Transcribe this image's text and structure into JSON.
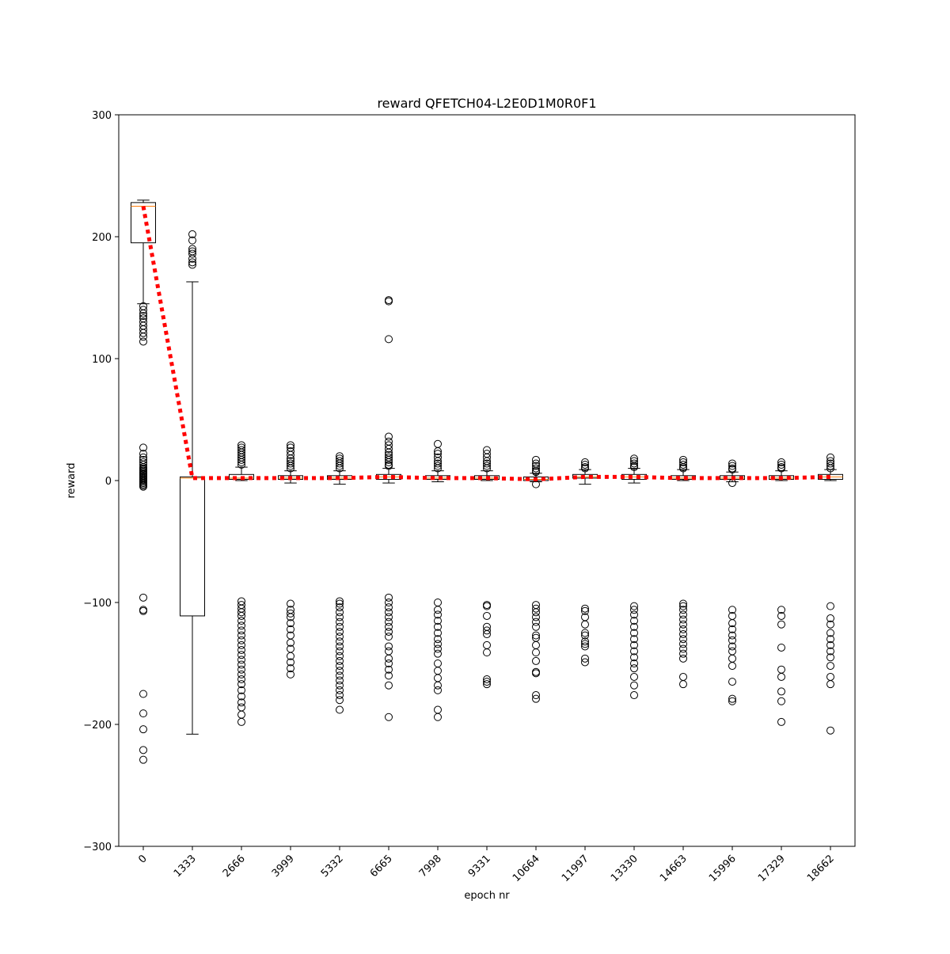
{
  "chart_data": {
    "type": "boxplot",
    "title": "reward QFETCH04-L2E0D1M0R0F1",
    "xlabel": "epoch nr",
    "ylabel": "reward",
    "ylim": [
      -300,
      300
    ],
    "yticks": [
      -300,
      -200,
      -100,
      0,
      100,
      200,
      300
    ],
    "ytick_labels": [
      "−300",
      "−200",
      "−100",
      "0",
      "100",
      "200",
      "300"
    ],
    "categories": [
      "0",
      "1333",
      "2666",
      "3999",
      "5332",
      "6665",
      "7998",
      "9331",
      "10664",
      "11997",
      "13330",
      "14663",
      "15996",
      "17329",
      "18662"
    ],
    "boxes": [
      {
        "q1": 195,
        "median": 225,
        "q3": 228,
        "whisker_low": 145,
        "whisker_high": 230,
        "fliers": [
          143,
          140,
          137,
          135,
          133,
          130,
          127,
          124,
          121,
          118,
          114,
          27,
          22,
          19,
          17,
          15,
          13,
          11,
          10,
          9,
          8,
          7,
          6,
          5,
          4,
          3,
          2,
          1,
          0,
          -1,
          -2,
          -3,
          -4,
          -5,
          -96,
          -106,
          -107,
          -175,
          -191,
          -204,
          -221,
          -229
        ]
      },
      {
        "q1": -111,
        "median": 2,
        "q3": 3,
        "whisker_low": -208,
        "whisker_high": 163,
        "fliers": [
          202,
          197,
          190,
          188,
          186,
          182,
          179,
          177
        ]
      },
      {
        "q1": 1,
        "median": 2,
        "q3": 5,
        "whisker_low": 0,
        "whisker_high": 11,
        "fliers": [
          29,
          27,
          25,
          23,
          21,
          19,
          17,
          15,
          13,
          -99,
          -102,
          -105,
          -108,
          -111,
          -115,
          -119,
          -123,
          -127,
          -131,
          -135,
          -139,
          -143,
          -147,
          -151,
          -155,
          -159,
          -163,
          -167,
          -172,
          -177,
          -182,
          -186,
          -192,
          -198
        ]
      },
      {
        "q1": 1,
        "median": 2,
        "q3": 4,
        "whisker_low": -2,
        "whisker_high": 8,
        "fliers": [
          29,
          27,
          24,
          21,
          18,
          16,
          14,
          12,
          10,
          -101,
          -106,
          -109,
          -112,
          -117,
          -122,
          -127,
          -133,
          -138,
          -144,
          -149,
          -154,
          -159
        ]
      },
      {
        "q1": 1,
        "median": 2,
        "q3": 4,
        "whisker_low": -3,
        "whisker_high": 8,
        "fliers": [
          20,
          18,
          16,
          14,
          12,
          10,
          -99,
          -101,
          -104,
          -108,
          -112,
          -116,
          -120,
          -124,
          -128,
          -132,
          -136,
          -140,
          -144,
          -148,
          -152,
          -156,
          -160,
          -164,
          -168,
          -172,
          -176,
          -180,
          -188
        ]
      },
      {
        "q1": 1,
        "median": 3,
        "q3": 5,
        "whisker_low": -2,
        "whisker_high": 10,
        "fliers": [
          148,
          147,
          116,
          36,
          32,
          29,
          26,
          23,
          21,
          19,
          17,
          15,
          13,
          12,
          -96,
          -100,
          -104,
          -108,
          -112,
          -116,
          -120,
          -124,
          -128,
          -136,
          -140,
          -146,
          -150,
          -155,
          -160,
          -168,
          -194
        ]
      },
      {
        "q1": 1,
        "median": 2,
        "q3": 4,
        "whisker_low": -1,
        "whisker_high": 8,
        "fliers": [
          30,
          24,
          22,
          19,
          16,
          14,
          12,
          10,
          -100,
          -106,
          -110,
          -115,
          -120,
          -125,
          -130,
          -134,
          -138,
          -142,
          -150,
          -156,
          -162,
          -168,
          -172,
          -188,
          -194
        ]
      },
      {
        "q1": 1,
        "median": 2,
        "q3": 4,
        "whisker_low": 0,
        "whisker_high": 8,
        "fliers": [
          25,
          22,
          19,
          16,
          14,
          12,
          10,
          -102,
          -103,
          -111,
          -120,
          -123,
          -126,
          -135,
          -141,
          -163,
          -165,
          -167
        ]
      },
      {
        "q1": 0,
        "median": 1,
        "q3": 3,
        "whisker_low": -1,
        "whisker_high": 6,
        "fliers": [
          17,
          14,
          12,
          10,
          8,
          7,
          -3,
          -102,
          -105,
          -108,
          -112,
          -116,
          -120,
          -127,
          -129,
          -135,
          -141,
          -148,
          -157,
          -158,
          -176,
          -179
        ]
      },
      {
        "q1": 2,
        "median": 3,
        "q3": 5,
        "whisker_low": -3,
        "whisker_high": 9,
        "fliers": [
          15,
          13,
          11,
          10,
          -105,
          -107,
          -112,
          -118,
          -125,
          -127,
          -132,
          -134,
          -136,
          -146,
          -149
        ]
      },
      {
        "q1": 1,
        "median": 3,
        "q3": 5,
        "whisker_low": -2,
        "whisker_high": 10,
        "fliers": [
          18,
          16,
          14,
          12,
          11,
          -103,
          -106,
          -110,
          -115,
          -120,
          -125,
          -130,
          -135,
          -140,
          -145,
          -150,
          -154,
          -161,
          -168,
          -176
        ]
      },
      {
        "q1": 1,
        "median": 2,
        "q3": 4,
        "whisker_low": 0,
        "whisker_high": 9,
        "fliers": [
          17,
          15,
          13,
          11,
          10,
          -101,
          -103,
          -106,
          -110,
          -114,
          -118,
          -122,
          -126,
          -130,
          -134,
          -138,
          -142,
          -146,
          -161,
          -167
        ]
      },
      {
        "q1": 1,
        "median": 2,
        "q3": 4,
        "whisker_low": -1,
        "whisker_high": 7,
        "fliers": [
          14,
          12,
          10,
          9,
          -2,
          -106,
          -111,
          -117,
          -122,
          -127,
          -131,
          -136,
          -140,
          -146,
          -152,
          -165,
          -179,
          -181
        ]
      },
      {
        "q1": 1,
        "median": 2,
        "q3": 4,
        "whisker_low": 0,
        "whisker_high": 8,
        "fliers": [
          15,
          13,
          11,
          10,
          -106,
          -111,
          -118,
          -137,
          -155,
          -161,
          -173,
          -181,
          -198
        ]
      },
      {
        "q1": 1,
        "median": 3,
        "q3": 5,
        "whisker_low": 0,
        "whisker_high": 9,
        "fliers": [
          19,
          16,
          14,
          12,
          10,
          -103,
          -113,
          -118,
          -125,
          -130,
          -135,
          -140,
          -145,
          -152,
          -161,
          -167,
          -205
        ]
      }
    ],
    "mean_line": {
      "color": "#ff0000",
      "style": "dotted",
      "values": [
        225,
        2,
        2,
        2,
        2,
        3,
        2,
        2,
        1,
        3,
        3,
        2,
        2,
        2,
        3
      ]
    },
    "box_color": "#000000",
    "median_color": "#ff7f0e",
    "grid": false,
    "legend": "none"
  }
}
